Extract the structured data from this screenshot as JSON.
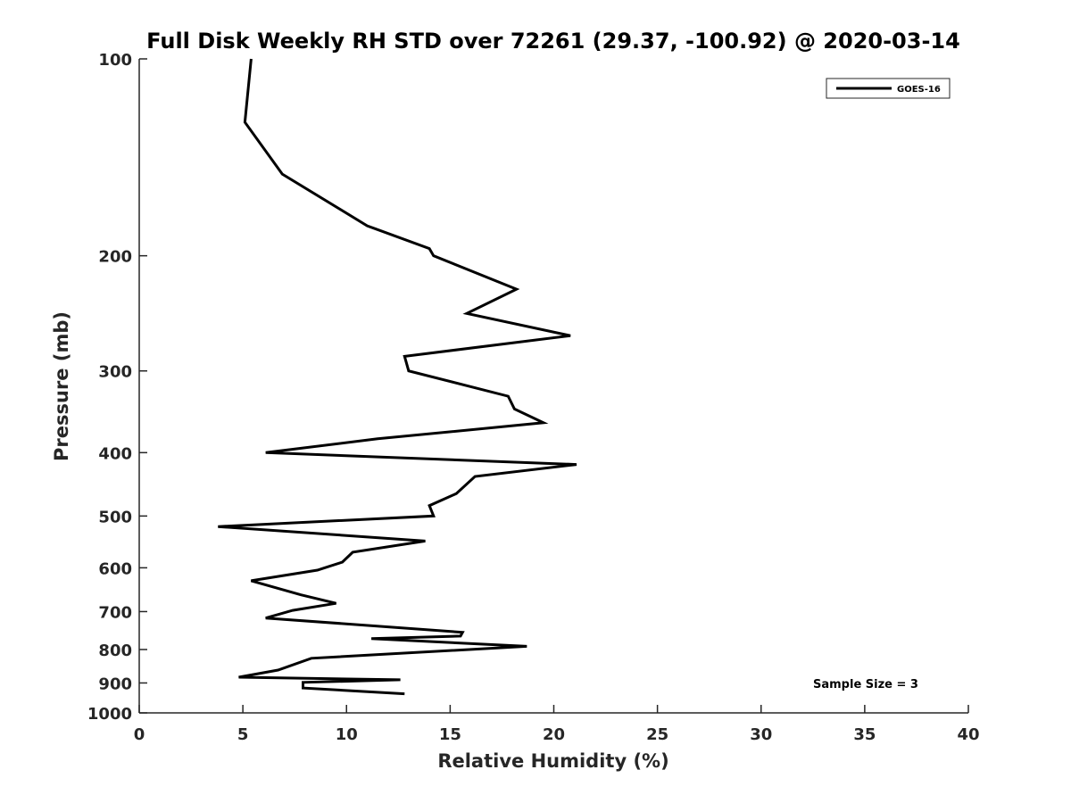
{
  "chart_data": {
    "type": "line",
    "title": "Full Disk Weekly RH STD over 72261 (29.37, -100.92) @ 2020-03-14",
    "xlabel": "Relative Humidity (%)",
    "ylabel": "Pressure (mb)",
    "xlim": [
      0,
      40
    ],
    "ylim": [
      100,
      1000
    ],
    "yscale": "log",
    "y_reversed": true,
    "grid": false,
    "x_ticks": [
      0,
      5,
      10,
      15,
      20,
      25,
      30,
      35,
      40
    ],
    "x_tick_labels": [
      "0",
      "5",
      "10",
      "15",
      "20",
      "25",
      "30",
      "35",
      "40"
    ],
    "y_ticks": [
      100,
      200,
      300,
      400,
      500,
      600,
      700,
      800,
      900,
      1000
    ],
    "y_tick_labels": [
      "100",
      "200",
      "300",
      "400",
      "500",
      "600",
      "700",
      "800",
      "900",
      "1000"
    ],
    "legend": {
      "position": "top-right",
      "entries": [
        "GOES-16"
      ]
    },
    "annotation": "Sample Size = 3",
    "line_color": "#000000",
    "series": [
      {
        "name": "GOES-16",
        "x": [
          5.4,
          5.1,
          6.9,
          11.0,
          14.0,
          14.2,
          18.2,
          15.8,
          20.8,
          12.8,
          13.0,
          17.8,
          18.1,
          19.5,
          11.5,
          6.1,
          21.1,
          16.2,
          15.3,
          14.0,
          14.2,
          3.8,
          13.8,
          10.3,
          9.8,
          8.6,
          5.4,
          7.8,
          9.5,
          7.4,
          6.1,
          15.6,
          15.5,
          11.2,
          18.7,
          8.3,
          6.7,
          4.8,
          12.6,
          7.9,
          7.9,
          12.8
        ],
        "y": [
          100,
          125,
          150,
          180,
          195,
          200,
          225,
          245,
          265,
          285,
          300,
          328,
          343,
          360,
          381,
          400,
          417,
          435,
          462,
          482,
          500,
          519,
          546,
          568,
          588,
          605,
          628,
          660,
          680,
          697,
          716,
          753,
          763,
          770,
          791,
          825,
          860,
          882,
          890,
          898,
          916,
          935
        ]
      }
    ]
  }
}
